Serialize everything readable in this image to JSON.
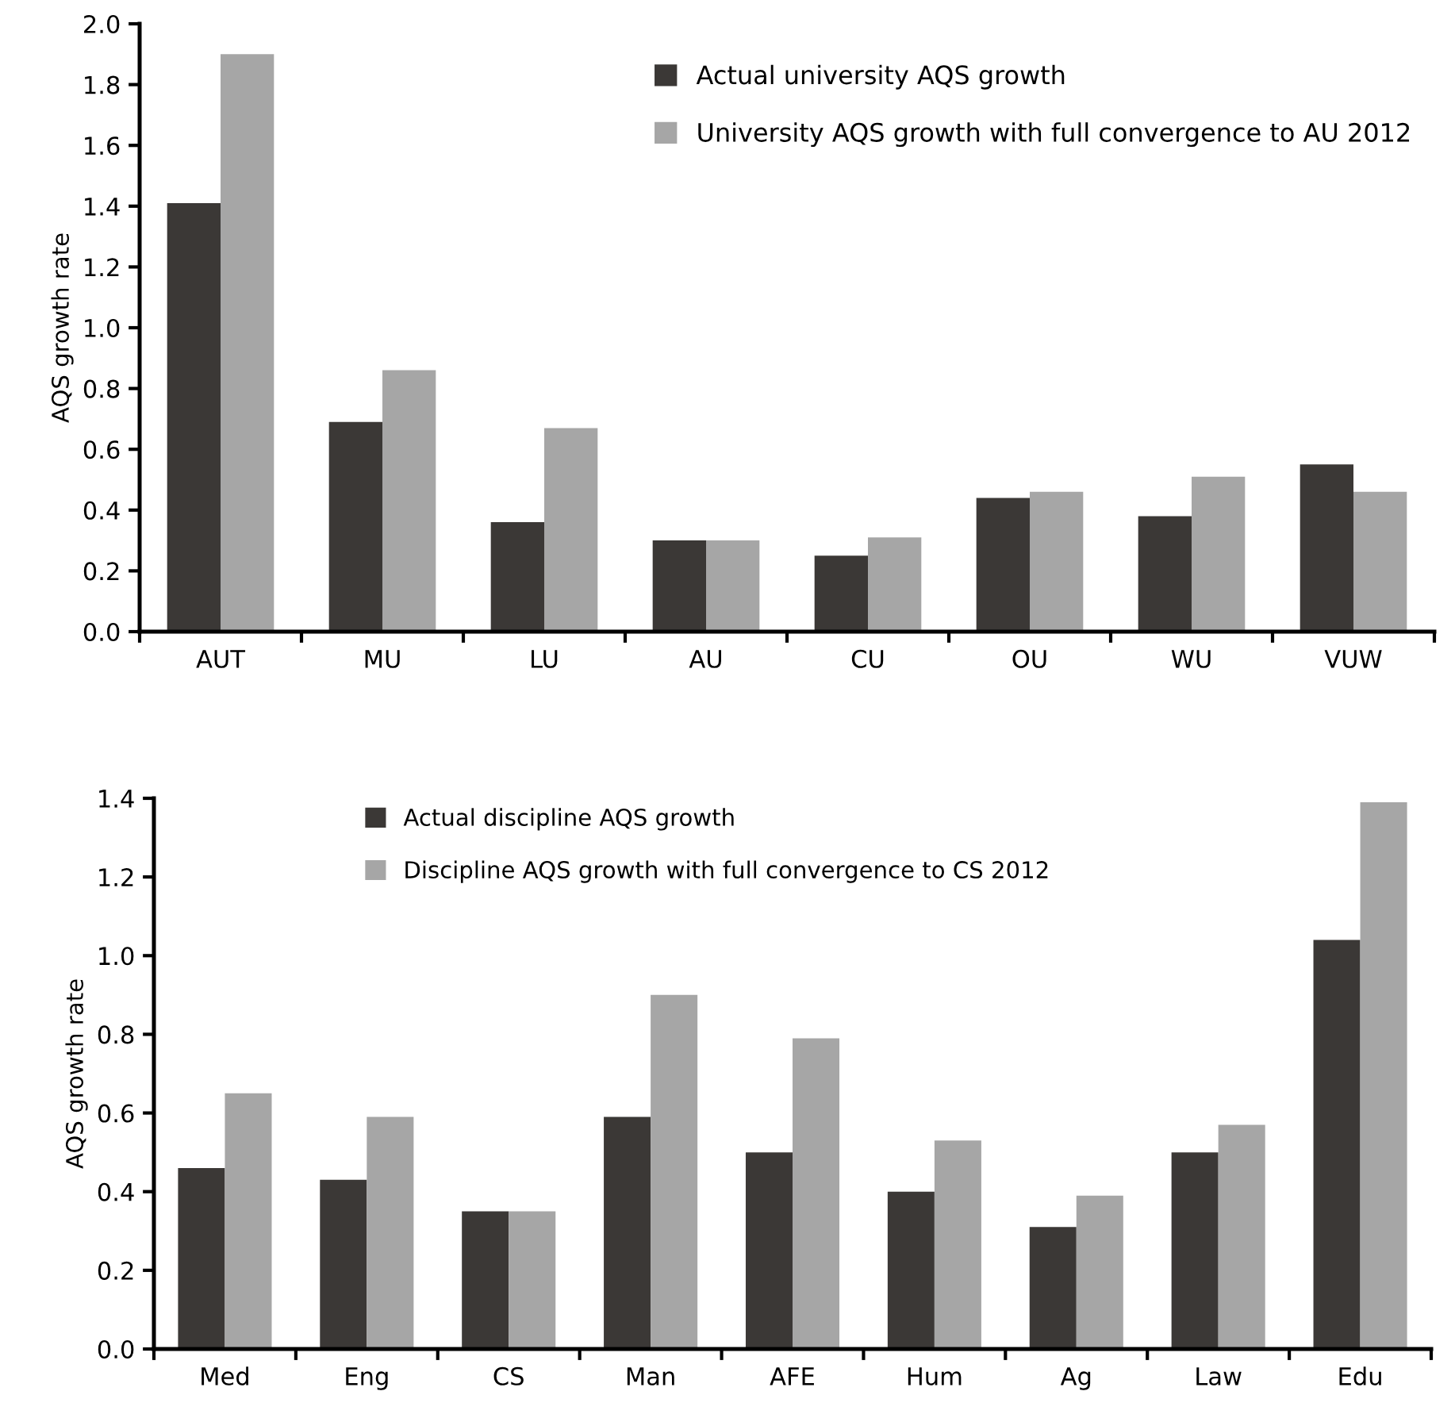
{
  "chart_data": [
    {
      "type": "bar",
      "ylabel": "AQS growth rate",
      "categories": [
        "AUT",
        "MU",
        "LU",
        "AU",
        "CU",
        "OU",
        "WU",
        "VUW"
      ],
      "series": [
        {
          "name": "Actual university AQS growth",
          "color": "#3b3836",
          "values": [
            1.41,
            0.69,
            0.36,
            0.3,
            0.25,
            0.44,
            0.38,
            0.55
          ]
        },
        {
          "name": "University AQS growth with full convergence to AU 2012",
          "color": "#a6a6a6",
          "values": [
            1.9,
            0.86,
            0.67,
            0.3,
            0.31,
            0.46,
            0.51,
            0.46
          ]
        }
      ],
      "ylim": [
        0.0,
        2.0
      ],
      "yticks": [
        {
          "value": 0,
          "label": "0.0"
        },
        0.2,
        0.4,
        0.6,
        0.8,
        {
          "value": 1,
          "label": "1.0"
        },
        1.2,
        1.4,
        1.6,
        1.8,
        {
          "value": 2,
          "label": "2.0"
        }
      ],
      "grid": false,
      "legend": "top right"
    },
    {
      "type": "bar",
      "ylabel": "AQS growth rate",
      "categories": [
        "Med",
        "Eng",
        "CS",
        "Man",
        "AFE",
        "Hum",
        "Ag",
        "Law",
        "Edu"
      ],
      "series": [
        {
          "name": "Actual discipline AQS growth",
          "color": "#3b3836",
          "values": [
            0.46,
            0.43,
            0.35,
            0.59,
            0.5,
            0.4,
            0.31,
            0.5,
            1.04
          ]
        },
        {
          "name": "Discipline AQS growth with full convergence to CS 2012",
          "color": "#a6a6a6",
          "values": [
            0.65,
            0.59,
            0.35,
            0.9,
            0.79,
            0.53,
            0.39,
            0.57,
            1.39
          ]
        }
      ],
      "ylim": [
        0.0,
        1.4
      ],
      "yticks": [
        {
          "value": 0,
          "label": "0.0"
        },
        0.2,
        0.4,
        0.6,
        0.8,
        {
          "value": 1,
          "label": "1.0"
        },
        1.2,
        1.4
      ],
      "grid": false,
      "legend": "top left"
    }
  ]
}
